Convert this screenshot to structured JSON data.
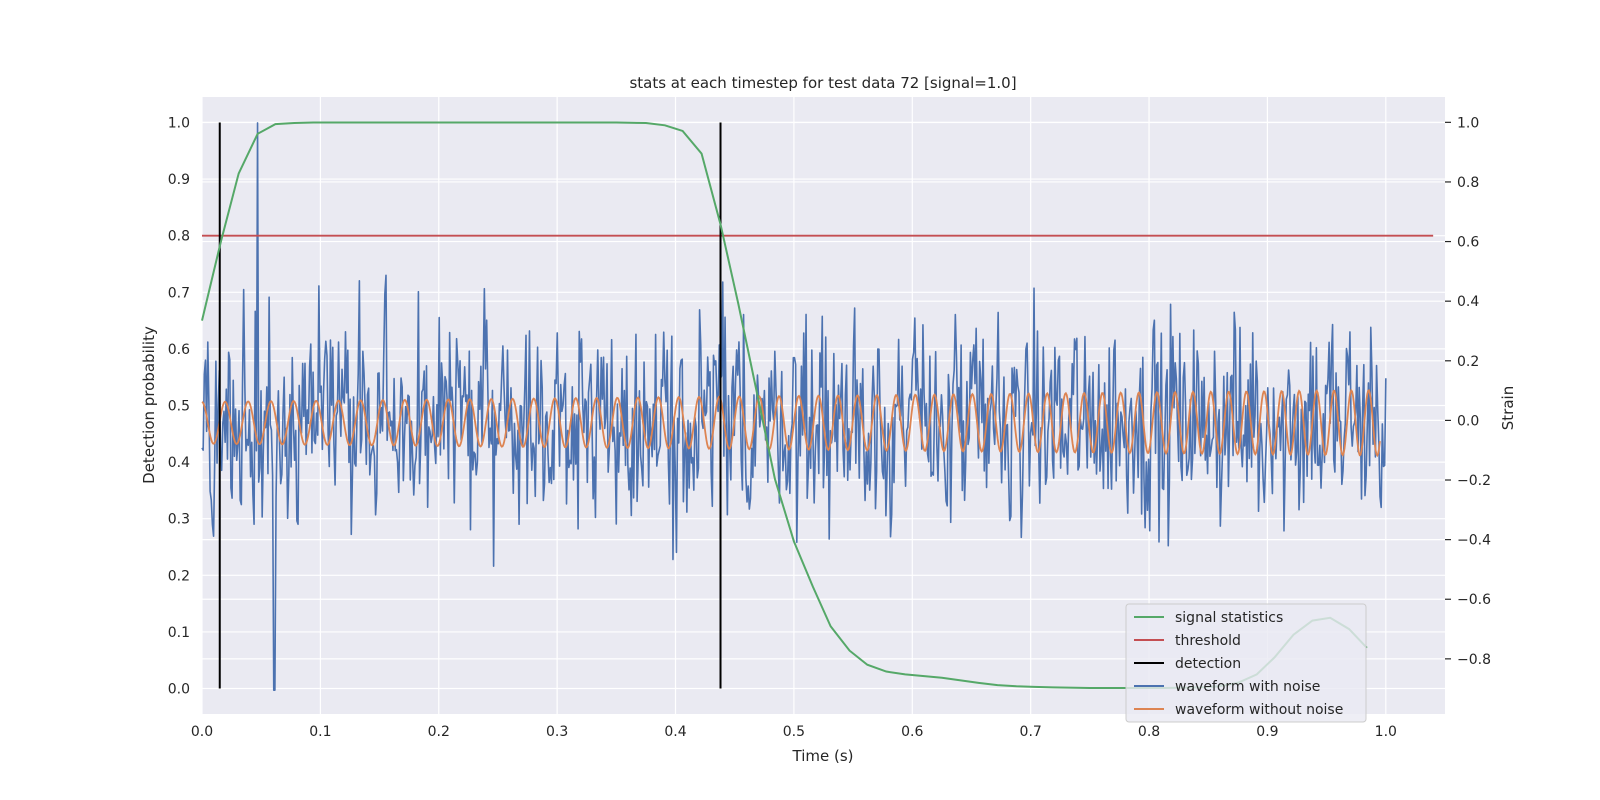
{
  "chart_data": {
    "type": "line",
    "title": "stats at each timestep for test data 72 [signal=1.0]",
    "xlabel": "Time (s)",
    "ylabel": "Detection probability",
    "y2label": "Strain",
    "xlim": [
      0.0,
      1.05
    ],
    "ylim": [
      -0.045,
      1.045
    ],
    "y2lim": [
      -0.985,
      1.085
    ],
    "xticks": [
      "0.0",
      "0.1",
      "0.2",
      "0.3",
      "0.4",
      "0.5",
      "0.6",
      "0.7",
      "0.8",
      "0.9",
      "1.0"
    ],
    "yticks": [
      "0.0",
      "0.1",
      "0.2",
      "0.3",
      "0.4",
      "0.5",
      "0.6",
      "0.7",
      "0.8",
      "0.9",
      "1.0"
    ],
    "y2ticks": [
      "−0.8",
      "−0.6",
      "−0.4",
      "−0.2",
      "0.0",
      "0.2",
      "0.4",
      "0.6",
      "0.8",
      "1.0"
    ],
    "grid": true,
    "legend_position": "lower-right",
    "colors": {
      "signal_statistics": "#55a868",
      "threshold": "#c44e52",
      "detection": "#000000",
      "waveform_with_noise": "#4c72b0",
      "waveform_without_noise": "#dd8452",
      "plot_background": "#eaeaf2",
      "grid": "#ffffff"
    },
    "series": [
      {
        "name": "signal statistics",
        "axis": "left",
        "x": [
          0.0,
          0.016,
          0.031,
          0.047,
          0.062,
          0.078,
          0.094,
          0.109,
          0.125,
          0.141,
          0.156,
          0.2,
          0.25,
          0.3,
          0.35,
          0.375,
          0.391,
          0.406,
          0.422,
          0.438,
          0.453,
          0.469,
          0.484,
          0.5,
          0.516,
          0.531,
          0.547,
          0.562,
          0.578,
          0.594,
          0.625,
          0.656,
          0.672,
          0.688,
          0.703,
          0.719,
          0.75,
          0.781,
          0.812,
          0.844,
          0.859,
          0.875,
          0.891,
          0.906,
          0.922,
          0.938,
          0.953,
          0.969,
          0.984
        ],
        "y": [
          0.65,
          0.79,
          0.91,
          0.98,
          0.997,
          0.999,
          1.0,
          1.0,
          1.0,
          1.0,
          1.0,
          1.0,
          1.0,
          1.0,
          1.0,
          0.999,
          0.995,
          0.985,
          0.945,
          0.82,
          0.68,
          0.52,
          0.37,
          0.26,
          0.18,
          0.11,
          0.067,
          0.042,
          0.03,
          0.025,
          0.019,
          0.01,
          0.006,
          0.004,
          0.003,
          0.002,
          0.001,
          0.001,
          0.001,
          0.002,
          0.004,
          0.01,
          0.025,
          0.055,
          0.095,
          0.12,
          0.125,
          0.105,
          0.072
        ]
      },
      {
        "name": "threshold",
        "axis": "left",
        "x": [
          0.0,
          1.04
        ],
        "y": [
          0.8,
          0.8
        ]
      },
      {
        "name": "detection",
        "axis": "left",
        "events": [
          0.015,
          0.438
        ],
        "y_range": [
          0.0,
          1.0
        ]
      },
      {
        "name": "waveform with noise",
        "axis": "right",
        "x_range": [
          0.0,
          1.0
        ],
        "samples": 1024,
        "y_range_approx": [
          -0.95,
          1.0
        ],
        "peak": {
          "x": 0.047,
          "y": 0.998
        },
        "trough": {
          "x": 0.061,
          "y": -0.905
        }
      },
      {
        "name": "waveform without noise",
        "axis": "right",
        "x_range": [
          0.0,
          0.995
        ],
        "amplitude_start": 0.07,
        "amplitude_end": 0.11,
        "cycles": 60
      }
    ],
    "legend": [
      "signal statistics",
      "threshold",
      "detection",
      "waveform with noise",
      "waveform without noise"
    ]
  }
}
